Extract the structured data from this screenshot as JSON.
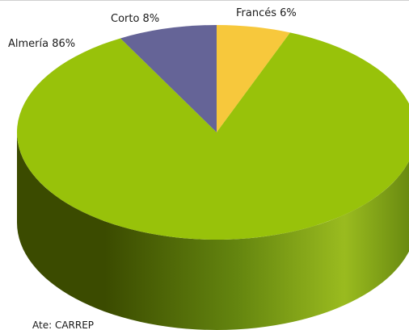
{
  "chart_data": {
    "type": "pie",
    "style": "3d",
    "slices": [
      {
        "label": "Almería",
        "value": 86,
        "color": "#98c20a"
      },
      {
        "label": "Francés",
        "value": 6,
        "color": "#f7c83c"
      },
      {
        "label": "Corto",
        "value": 8,
        "color": "#656497"
      }
    ],
    "data_labels": [
      {
        "text": "Corto 8%"
      },
      {
        "text": "Francés 6%"
      },
      {
        "text": "Almería 86%"
      }
    ],
    "side_colors": {
      "dark": "#3b4b00",
      "mid": "#64850f",
      "light": "#9abb1f"
    },
    "legend": "none",
    "grid": false
  },
  "footer": {
    "source_text": "Ate: CARREP"
  }
}
